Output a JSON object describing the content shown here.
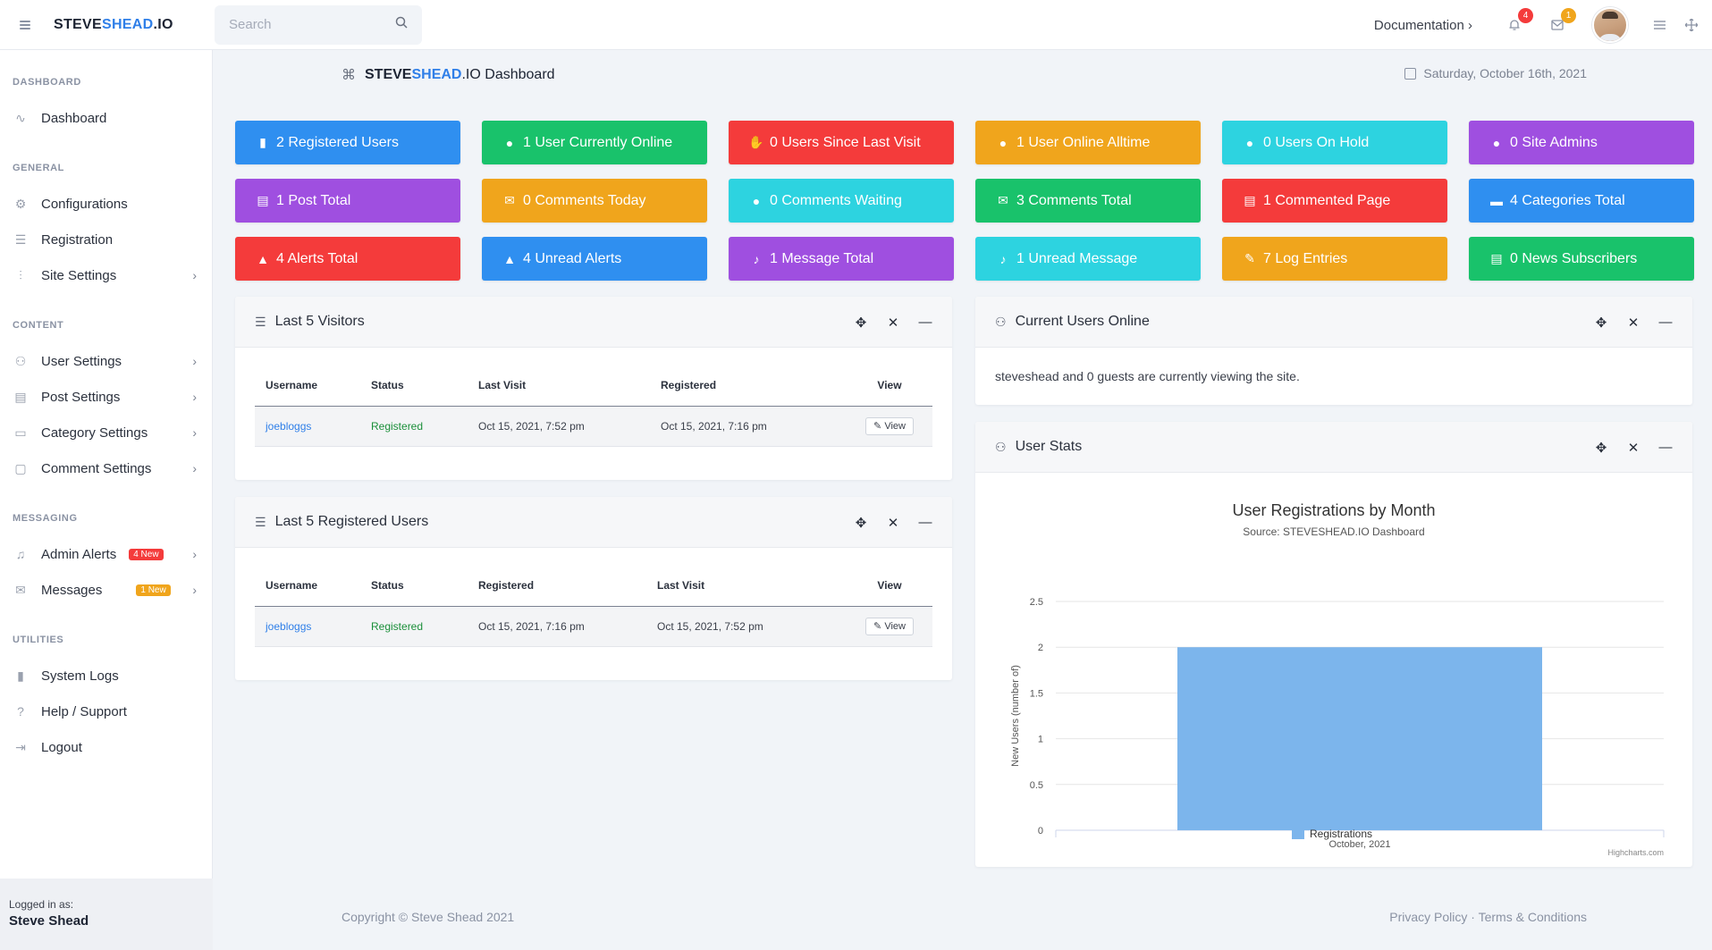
{
  "topbar": {
    "logo_a": "STEVE",
    "logo_b": "SHEAD",
    "logo_c": ".IO",
    "search_placeholder": "Search",
    "documentation": "Documentation",
    "notification_count": "4",
    "message_count": "1"
  },
  "sidebar": {
    "sections": {
      "dashboard": "DASHBOARD",
      "general": "GENERAL",
      "content": "CONTENT",
      "messaging": "MESSAGING",
      "utilities": "UTILITIES"
    },
    "items": {
      "dashboard": "Dashboard",
      "configurations": "Configurations",
      "registration": "Registration",
      "site_settings": "Site Settings",
      "user_settings": "User Settings",
      "post_settings": "Post Settings",
      "category_settings": "Category Settings",
      "comment_settings": "Comment Settings",
      "admin_alerts": "Admin Alerts",
      "admin_alerts_badge": "4 New",
      "messages": "Messages",
      "messages_badge": "1 New",
      "system_logs": "System Logs",
      "help_support": "Help / Support",
      "logout": "Logout"
    },
    "logged_in_label": "Logged in as:",
    "logged_in_user": "Steve Shead"
  },
  "header": {
    "title_a": "STEVE",
    "title_b": "SHEAD",
    "title_c": ".IO Dashboard",
    "date": "Saturday, October 16th, 2021"
  },
  "tiles": [
    {
      "label": "2 Registered Users",
      "color": "#2f8ff0"
    },
    {
      "label": "1 User Currently Online",
      "color": "#19c26b"
    },
    {
      "label": "0 Users Since Last Visit",
      "color": "#f43b3b"
    },
    {
      "label": "1 User Online Alltime",
      "color": "#f0a51c"
    },
    {
      "label": "0 Users On Hold",
      "color": "#2dd3e0"
    },
    {
      "label": "0 Site Admins",
      "color": "#9f4fe0"
    },
    {
      "label": "1 Post Total",
      "color": "#9f4fe0"
    },
    {
      "label": "0 Comments Today",
      "color": "#f0a51c"
    },
    {
      "label": "0 Comments Waiting",
      "color": "#2dd3e0"
    },
    {
      "label": "3 Comments Total",
      "color": "#19c26b"
    },
    {
      "label": "1 Commented Page",
      "color": "#f43b3b"
    },
    {
      "label": "4 Categories Total",
      "color": "#2f8ff0"
    },
    {
      "label": "4 Alerts Total",
      "color": "#f43b3b"
    },
    {
      "label": "4 Unread Alerts",
      "color": "#2f8ff0"
    },
    {
      "label": "1 Message Total",
      "color": "#9f4fe0"
    },
    {
      "label": "1 Unread Message",
      "color": "#2dd3e0"
    },
    {
      "label": "7 Log Entries",
      "color": "#f0a51c"
    },
    {
      "label": "0 News Subscribers",
      "color": "#19c26b"
    }
  ],
  "visitors": {
    "title": "Last 5 Visitors",
    "columns": [
      "Username",
      "Status",
      "Last Visit",
      "Registered",
      "View"
    ],
    "row": {
      "username": "joebloggs",
      "status": "Registered",
      "c3": "Oct 15, 2021, 7:52 pm",
      "c4": "Oct 15, 2021, 7:16 pm",
      "view": "View"
    }
  },
  "registered": {
    "title": "Last 5 Registered Users",
    "columns": [
      "Username",
      "Status",
      "Registered",
      "Last Visit",
      "View"
    ],
    "row": {
      "username": "joebloggs",
      "status": "Registered",
      "c3": "Oct 15, 2021, 7:16 pm",
      "c4": "Oct 15, 2021, 7:52 pm",
      "view": "View"
    }
  },
  "online": {
    "title": "Current Users Online",
    "text": "steveshead and 0 guests are currently viewing the site."
  },
  "stats": {
    "title": "User Stats"
  },
  "chart_data": {
    "type": "bar",
    "title": "User Registrations by Month",
    "subtitle": "Source: STEVESHEAD.IO Dashboard",
    "categories": [
      "October, 2021"
    ],
    "series": [
      {
        "name": "Registrations",
        "values": [
          2
        ],
        "color": "#7cb5ec"
      }
    ],
    "ylabel": "New Users (number of)",
    "xlabel": "",
    "ylim": [
      0,
      2.5
    ],
    "yticks": [
      "0",
      "0.5",
      "1",
      "1.5",
      "2",
      "2.5"
    ],
    "credit": "Highcharts.com",
    "legend": "bottom-center",
    "grid": true
  },
  "footer": {
    "copyright": "Copyright © Steve Shead 2021",
    "privacy": "Privacy Policy",
    "sep": "·",
    "terms": "Terms & Conditions"
  }
}
